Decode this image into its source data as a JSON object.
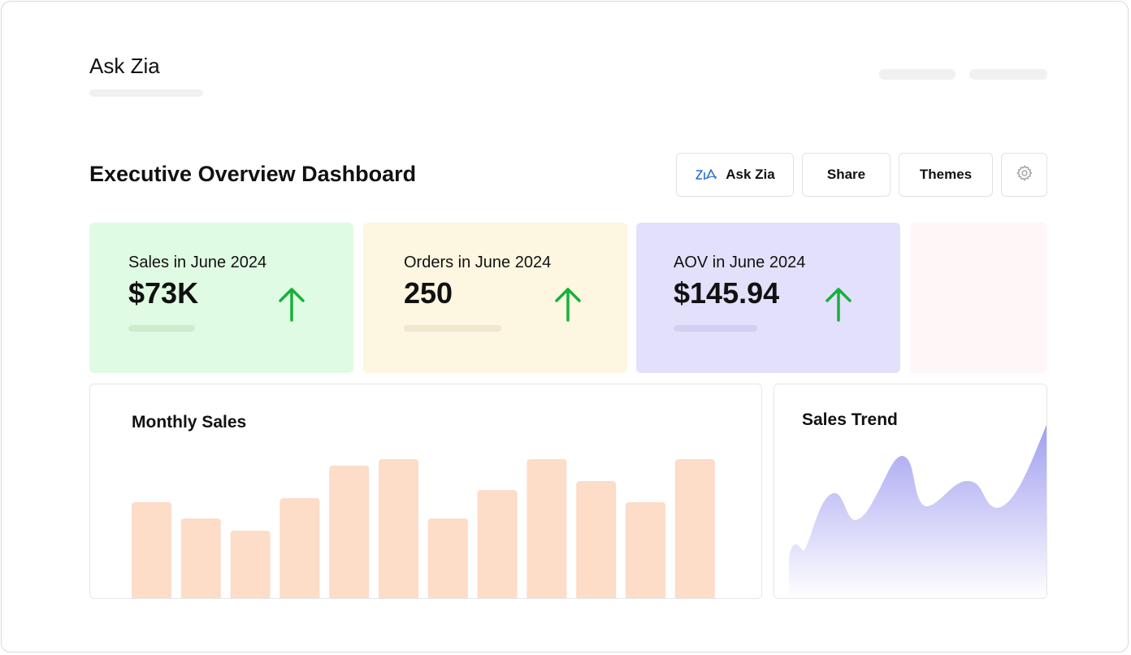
{
  "app": {
    "title": "Ask Zia"
  },
  "dashboard": {
    "title": "Executive Overview Dashboard"
  },
  "toolbar": {
    "ask_zia_label": "Ask Zia",
    "share_label": "Share",
    "themes_label": "Themes",
    "settings_icon": "gear-icon",
    "ask_zia_icon": "zia-icon"
  },
  "kpis": [
    {
      "label": "Sales in June 2024",
      "value": "$73K",
      "trend": "up",
      "bg": "#e0fbe3",
      "accent": "#16b13b"
    },
    {
      "label": "Orders in June 2024",
      "value": "250",
      "trend": "up",
      "bg": "#fdf6e0",
      "accent": "#16b13b"
    },
    {
      "label": "AOV in June 2024",
      "value": "$145.94",
      "trend": "up",
      "bg": "#e3e0fc",
      "accent": "#16b13b"
    }
  ],
  "monthly_sales": {
    "title": "Monthly Sales",
    "bar_color": "#fddcc8",
    "chart_data": {
      "type": "bar",
      "values": [
        120,
        100,
        85,
        125,
        165,
        173,
        100,
        135,
        173,
        146,
        120,
        173
      ]
    }
  },
  "sales_trend": {
    "title": "Sales Trend",
    "fill_top": "#9f9df0",
    "fill_bottom": "#ffffff",
    "chart_data": {
      "type": "area"
    }
  }
}
